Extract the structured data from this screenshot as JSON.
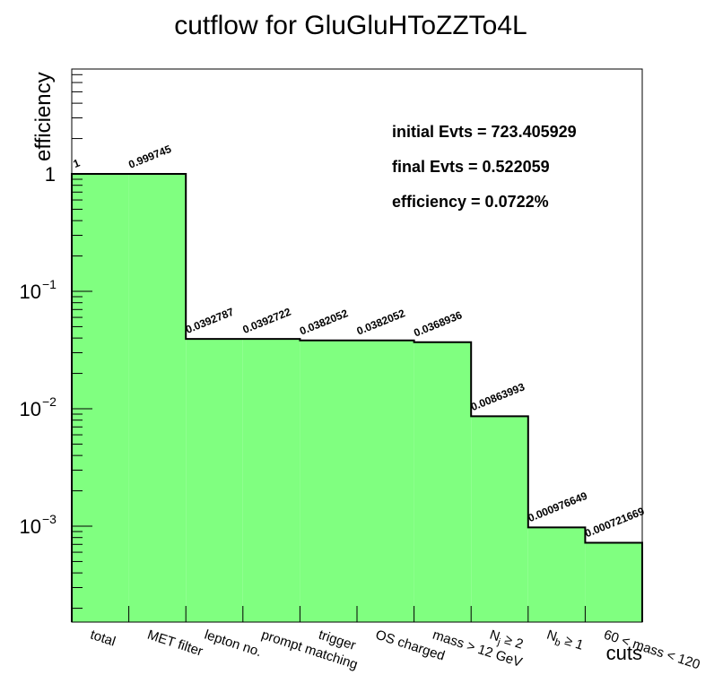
{
  "chart_data": {
    "type": "bar",
    "title": "cutflow for GluGluHToZZTo4L",
    "xlabel": "cuts",
    "ylabel": "efficiency",
    "yscale": "log",
    "ylim": [
      0.00015,
      12
    ],
    "categories": [
      "total",
      "MET filter",
      "lepton no.",
      "prompt matching",
      "trigger",
      "OS charged",
      "mass > 12 GeV",
      "N_j ≥ 2",
      "N_b ≥ 1",
      "60 < mass < 120"
    ],
    "values": [
      1,
      0.999745,
      0.0392787,
      0.0392722,
      0.0382052,
      0.0382052,
      0.0368936,
      0.00863993,
      0.000976649,
      0.000721669
    ],
    "value_labels": [
      "1",
      "0.999745",
      "0.0392787",
      "0.0392722",
      "0.0382052",
      "0.0382052",
      "0.0368936",
      "0.00863993",
      "0.000976649",
      "0.000721669"
    ],
    "fill_color": "#80ff80",
    "line_color": "#000000",
    "yticks": [
      {
        "base": "1",
        "exp": ""
      },
      {
        "base": "10",
        "exp": "−1"
      },
      {
        "base": "10",
        "exp": "−2"
      },
      {
        "base": "10",
        "exp": "−3"
      }
    ],
    "annotations": [
      "initial Evts = 723.405929",
      "final Evts = 0.522059",
      "efficiency = 0.0722%"
    ]
  }
}
